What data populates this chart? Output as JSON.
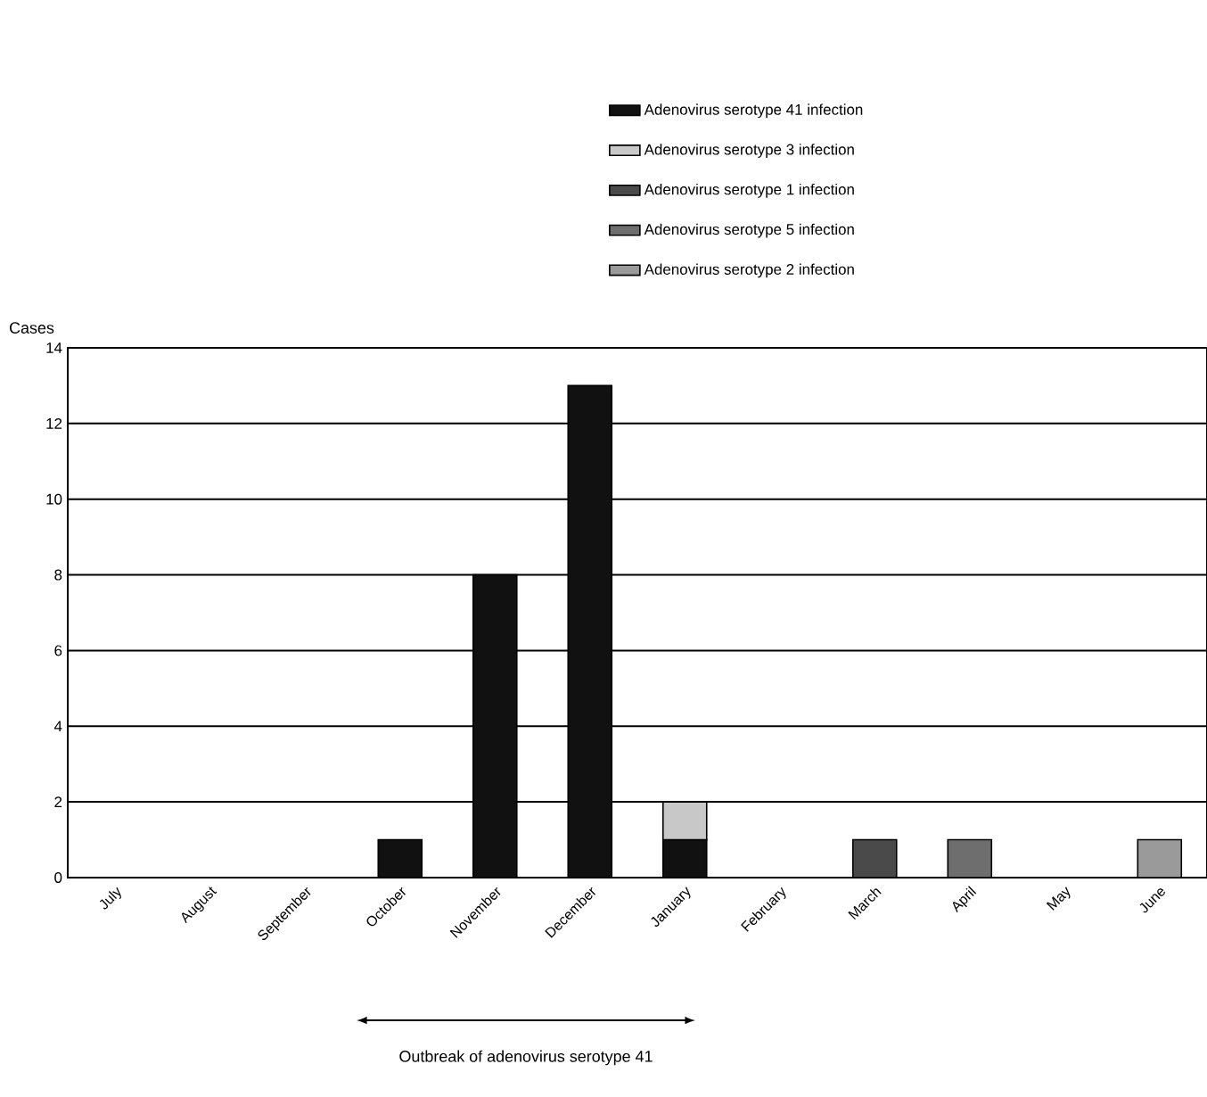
{
  "chart_data": {
    "type": "bar",
    "stacked": true,
    "ylabel": "Cases",
    "categories": [
      "July",
      "August",
      "September",
      "October",
      "November",
      "December",
      "January",
      "February",
      "March",
      "April",
      "May",
      "June"
    ],
    "series": [
      {
        "name": "Adenovirus serotype 41 infection",
        "color": "#111111",
        "values": [
          null,
          null,
          null,
          1,
          8,
          13,
          1,
          null,
          null,
          null,
          null,
          null
        ]
      },
      {
        "name": "Adenovirus serotype 3 infection",
        "color": "#c8c8c8",
        "values": [
          null,
          null,
          null,
          null,
          null,
          null,
          1,
          null,
          null,
          null,
          null,
          null
        ]
      },
      {
        "name": "Adenovirus serotype 1 infection",
        "color": "#4a4a4a",
        "values": [
          null,
          null,
          null,
          null,
          null,
          null,
          null,
          null,
          1,
          null,
          null,
          null
        ]
      },
      {
        "name": "Adenovirus serotype 5 infection",
        "color": "#6e6e6e",
        "values": [
          null,
          null,
          null,
          null,
          null,
          null,
          null,
          null,
          null,
          1,
          null,
          null
        ]
      },
      {
        "name": "Adenovirus serotype 2 infection",
        "color": "#9a9a9a",
        "values": [
          null,
          null,
          null,
          null,
          null,
          null,
          null,
          null,
          null,
          null,
          null,
          1
        ]
      }
    ],
    "ylim": [
      0,
      14
    ],
    "yticks": [
      0,
      2,
      4,
      6,
      8,
      10,
      12,
      14
    ],
    "grid": "y",
    "legend": "top",
    "annotations": [
      "Outbreak of adenovirus serotype 41"
    ]
  }
}
